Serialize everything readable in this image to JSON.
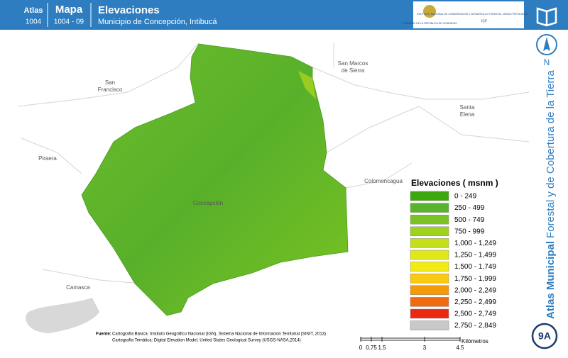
{
  "header": {
    "atlas_label": "Atlas",
    "atlas_number": "1004",
    "map_label": "Mapa",
    "map_number": "1004 - 09",
    "title": "Elevaciones",
    "subtitle": "Municipio de Concepción, Intibucá",
    "logo_left": "GOBIERNO DE LA REPÚBLICA DE HONDURAS",
    "logo_right": "INSTITUTO NACIONAL DE CONSERVACIÓN Y DESARROLLO FORESTAL, ÁREAS PROTEGIDAS Y VIDA SILVESTRE",
    "logo_right_abbr": "ICF"
  },
  "sidebar": {
    "north": "N",
    "atlas_bold": "Atlas Municipal",
    "atlas_rest": "Forestal y de Cobertura de la Tierra",
    "sheet": "9A"
  },
  "places": [
    {
      "name": "San Francisco"
    },
    {
      "name": "San Marcos de Sierra"
    },
    {
      "name": "Santa Elena"
    },
    {
      "name": "Piraera"
    },
    {
      "name": "Colomoncagua"
    },
    {
      "name": "Camasca"
    },
    {
      "name": "Concepción"
    }
  ],
  "legend": {
    "title": "Elevaciones ( msnm )",
    "items": [
      {
        "label": "0 - 249",
        "color": "#3ea60e"
      },
      {
        "label": "250 - 499",
        "color": "#58b42a"
      },
      {
        "label": "500 - 749",
        "color": "#7ac322"
      },
      {
        "label": "750 - 999",
        "color": "#9ed21c"
      },
      {
        "label": "1,000 - 1,249",
        "color": "#c4e01a"
      },
      {
        "label": "1,250 - 1,499",
        "color": "#e0e81a"
      },
      {
        "label": "1,500 - 1,749",
        "color": "#f3eb12"
      },
      {
        "label": "1,750 - 1,999",
        "color": "#fbc90e"
      },
      {
        "label": "2,000 - 2,249",
        "color": "#f59a0a"
      },
      {
        "label": "2,250 - 2,499",
        "color": "#f06a10"
      },
      {
        "label": "2,500 - 2,749",
        "color": "#ea2a10"
      },
      {
        "label": "2,750 - 2,849",
        "color": "#c8c8c8"
      }
    ]
  },
  "source": {
    "label": "Fuente:",
    "lines": [
      "Cartografía Básica: Instituto Geográfico Nacional (IGN), Sistema Nacional de Información Territorial (SINIT, 2013)",
      "Cartografía Temática: Digital Elevation Model, United States Geological Survey (USGS-NASA,2014)"
    ]
  },
  "scale": {
    "ticks": [
      "0",
      "0.75",
      "1.5",
      "3",
      "4.5"
    ],
    "unit": "Kilómetros"
  }
}
